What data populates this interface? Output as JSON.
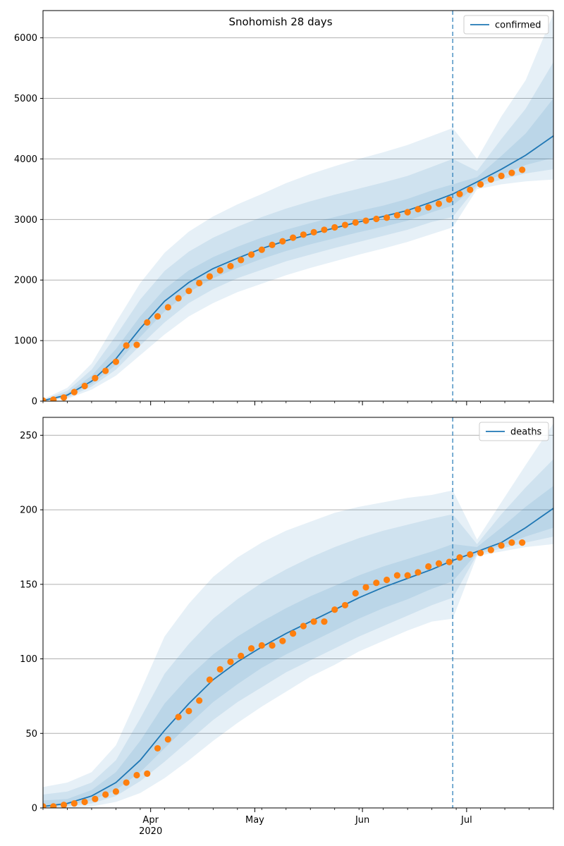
{
  "figure_title": "Snohomish 28 days",
  "colors": {
    "model": "#1f77b4",
    "observed": "#ff7f0e",
    "band": "#1f77b4",
    "grid": "#b0b0b0",
    "cutoff": "#1f77b4"
  },
  "chart_data": [
    {
      "type": "line",
      "series_name": "confirmed",
      "legend_position": "upper-right",
      "x_range": [
        "2020-03-01",
        "2020-07-26"
      ],
      "ylim": [
        0,
        6450
      ],
      "yticks": [
        0,
        1000,
        2000,
        3000,
        4000,
        5000,
        6000
      ],
      "grid": "horizontal",
      "forecast_start": "2020-06-27",
      "model_curve": {
        "dates": [
          "2020-03-01",
          "2020-03-08",
          "2020-03-15",
          "2020-03-22",
          "2020-03-29",
          "2020-04-05",
          "2020-04-12",
          "2020-04-19",
          "2020-04-26",
          "2020-05-03",
          "2020-05-10",
          "2020-05-17",
          "2020-05-24",
          "2020-05-31",
          "2020-06-07",
          "2020-06-14",
          "2020-06-21",
          "2020-06-27",
          "2020-07-04",
          "2020-07-11",
          "2020-07-18",
          "2020-07-26"
        ],
        "median": [
          10,
          100,
          330,
          700,
          1200,
          1650,
          1960,
          2190,
          2360,
          2520,
          2650,
          2760,
          2860,
          2960,
          3050,
          3150,
          3290,
          3420,
          3620,
          3830,
          4060,
          4380
        ],
        "bands": [
          {
            "lower": [
              0,
              40,
              190,
              420,
              760,
              1100,
              1400,
              1620,
              1800,
              1940,
              2080,
              2200,
              2310,
              2420,
              2520,
              2630,
              2760,
              2870,
              3500,
              3580,
              3630,
              3660
            ],
            "upper": [
              30,
              220,
              620,
              1300,
              1950,
              2450,
              2800,
              3050,
              3250,
              3420,
              3600,
              3750,
              3880,
              4000,
              4110,
              4230,
              4380,
              4510,
              4000,
              4700,
              5300,
              6400
            ]
          },
          {
            "lower": [
              2,
              60,
              240,
              520,
              920,
              1300,
              1620,
              1850,
              2030,
              2170,
              2310,
              2420,
              2530,
              2630,
              2730,
              2830,
              2960,
              3040,
              3540,
              3660,
              3760,
              3830
            ],
            "upper": [
              22,
              170,
              520,
              1080,
              1680,
              2150,
              2470,
              2700,
              2880,
              3040,
              3180,
              3300,
              3410,
              3510,
              3610,
              3720,
              3870,
              4000,
              3800,
              4330,
              4830,
              5600
            ]
          },
          {
            "lower": [
              5,
              80,
              280,
              600,
              1060,
              1480,
              1800,
              2030,
              2200,
              2350,
              2480,
              2590,
              2690,
              2790,
              2880,
              2980,
              3120,
              3230,
              3570,
              3740,
              3900,
              4020
            ],
            "upper": [
              16,
              130,
              420,
              860,
              1400,
              1850,
              2160,
              2380,
              2550,
              2700,
              2830,
              2940,
              3040,
              3140,
              3230,
              3340,
              3480,
              3580,
              3700,
              4050,
              4420,
              5000
            ]
          }
        ]
      },
      "observed": {
        "dates": [
          "2020-03-01",
          "2020-03-04",
          "2020-03-07",
          "2020-03-10",
          "2020-03-13",
          "2020-03-16",
          "2020-03-19",
          "2020-03-22",
          "2020-03-25",
          "2020-03-28",
          "2020-03-31",
          "2020-04-03",
          "2020-04-06",
          "2020-04-09",
          "2020-04-12",
          "2020-04-15",
          "2020-04-18",
          "2020-04-21",
          "2020-04-24",
          "2020-04-27",
          "2020-04-30",
          "2020-05-03",
          "2020-05-06",
          "2020-05-09",
          "2020-05-12",
          "2020-05-15",
          "2020-05-18",
          "2020-05-21",
          "2020-05-24",
          "2020-05-27",
          "2020-05-30",
          "2020-06-02",
          "2020-06-05",
          "2020-06-08",
          "2020-06-11",
          "2020-06-14",
          "2020-06-17",
          "2020-06-20",
          "2020-06-23",
          "2020-06-26",
          "2020-06-29",
          "2020-07-02",
          "2020-07-05",
          "2020-07-08",
          "2020-07-11",
          "2020-07-14",
          "2020-07-17"
        ],
        "values": [
          10,
          25,
          60,
          150,
          250,
          380,
          500,
          650,
          920,
          930,
          1300,
          1400,
          1550,
          1700,
          1820,
          1950,
          2060,
          2160,
          2230,
          2330,
          2420,
          2500,
          2580,
          2640,
          2700,
          2750,
          2790,
          2830,
          2870,
          2910,
          2950,
          2980,
          3010,
          3030,
          3070,
          3120,
          3170,
          3200,
          3260,
          3330,
          3420,
          3490,
          3580,
          3660,
          3720,
          3770,
          3820
        ]
      }
    },
    {
      "type": "line",
      "series_name": "deaths",
      "legend_position": "upper-right",
      "x_range": [
        "2020-03-01",
        "2020-07-26"
      ],
      "ylim": [
        0,
        262
      ],
      "yticks": [
        0,
        50,
        100,
        150,
        200,
        250
      ],
      "grid": "horizontal",
      "forecast_start": "2020-06-27",
      "x_tick_labels": [
        {
          "date": "2020-04-01",
          "label": "Apr",
          "sublabel": "2020"
        },
        {
          "date": "2020-05-01",
          "label": "May",
          "sublabel": ""
        },
        {
          "date": "2020-06-01",
          "label": "Jun",
          "sublabel": ""
        },
        {
          "date": "2020-07-01",
          "label": "Jul",
          "sublabel": ""
        }
      ],
      "model_curve": {
        "dates": [
          "2020-03-01",
          "2020-03-08",
          "2020-03-15",
          "2020-03-22",
          "2020-03-29",
          "2020-04-05",
          "2020-04-12",
          "2020-04-19",
          "2020-04-26",
          "2020-05-03",
          "2020-05-10",
          "2020-05-17",
          "2020-05-24",
          "2020-05-31",
          "2020-06-07",
          "2020-06-14",
          "2020-06-21",
          "2020-06-27",
          "2020-07-04",
          "2020-07-11",
          "2020-07-18",
          "2020-07-26"
        ],
        "median": [
          1,
          3,
          8,
          17,
          32,
          52,
          70,
          86,
          98,
          108,
          117,
          125,
          133,
          141,
          148,
          154,
          160,
          166,
          172,
          178,
          188,
          201
        ],
        "bands": [
          {
            "lower": [
              0,
              0,
              1,
              4,
              10,
              20,
              32,
              45,
              57,
              68,
              78,
              88,
              96,
              105,
              112,
              119,
              125,
              127,
              169,
              172,
              175,
              177
            ],
            "upper": [
              14,
              17,
              24,
              42,
              78,
              115,
              137,
              155,
              168,
              178,
              186,
              192,
              198,
              202,
              205,
              208,
              210,
              213,
              180,
              205,
              230,
              258
            ]
          },
          {
            "lower": [
              0,
              1,
              3,
              8,
              18,
              31,
              45,
              59,
              71,
              81,
              91,
              99,
              107,
              115,
              122,
              129,
              136,
              141,
              170,
              174,
              178,
              182
            ],
            "upper": [
              9,
              11,
              17,
              32,
              60,
              90,
              110,
              127,
              140,
              151,
              160,
              168,
              175,
              181,
              186,
              190,
              194,
              197,
              177,
              197,
              215,
              234
            ]
          },
          {
            "lower": [
              0,
              2,
              5,
              12,
              24,
              40,
              56,
              71,
              83,
              94,
              103,
              111,
              119,
              127,
              134,
              140,
              147,
              152,
              171,
              176,
              182,
              188
            ],
            "upper": [
              5,
              6,
              12,
              24,
              45,
              70,
              88,
              103,
              115,
              125,
              134,
              142,
              149,
              156,
              162,
              167,
              172,
              177,
              175,
              188,
              202,
              216
            ]
          }
        ]
      },
      "observed": {
        "dates": [
          "2020-03-01",
          "2020-03-04",
          "2020-03-07",
          "2020-03-10",
          "2020-03-13",
          "2020-03-16",
          "2020-03-19",
          "2020-03-22",
          "2020-03-25",
          "2020-03-28",
          "2020-03-31",
          "2020-04-03",
          "2020-04-06",
          "2020-04-09",
          "2020-04-12",
          "2020-04-15",
          "2020-04-18",
          "2020-04-21",
          "2020-04-24",
          "2020-04-27",
          "2020-04-30",
          "2020-05-03",
          "2020-05-06",
          "2020-05-09",
          "2020-05-12",
          "2020-05-15",
          "2020-05-18",
          "2020-05-21",
          "2020-05-24",
          "2020-05-27",
          "2020-05-30",
          "2020-06-02",
          "2020-06-05",
          "2020-06-08",
          "2020-06-11",
          "2020-06-14",
          "2020-06-17",
          "2020-06-20",
          "2020-06-23",
          "2020-06-26",
          "2020-06-29",
          "2020-07-02",
          "2020-07-05",
          "2020-07-08",
          "2020-07-11",
          "2020-07-14",
          "2020-07-17"
        ],
        "values": [
          1,
          1,
          2,
          3,
          4,
          6,
          9,
          11,
          17,
          22,
          23,
          40,
          46,
          61,
          65,
          72,
          86,
          93,
          98,
          102,
          107,
          109,
          109,
          112,
          117,
          122,
          125,
          125,
          133,
          136,
          144,
          148,
          151,
          153,
          156,
          156,
          158,
          162,
          164,
          165,
          168,
          170,
          171,
          173,
          176,
          178,
          178
        ]
      }
    }
  ]
}
